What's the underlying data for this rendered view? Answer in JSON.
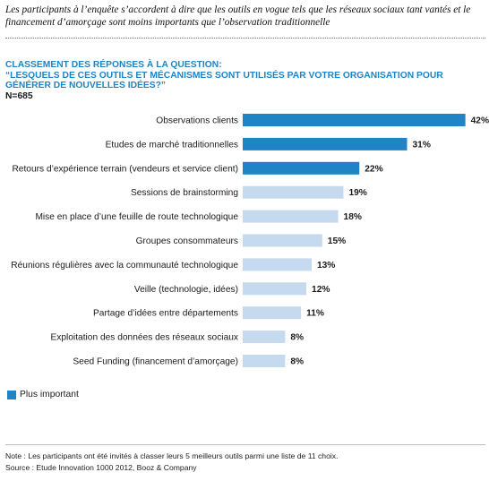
{
  "headline": "Les participants à l’enquête s’accordent à dire que les outils en vogue tels que les réseaux sociaux tant vantés et le financement d’amorçage sont moins importants que l’observation traditionnelle",
  "question": {
    "line1": "CLASSEMENT DES RÉPONSES À LA QUESTION:",
    "line2": "“LESQUELS DE CES OUTILS ET MÉCANISMES SONT UTILISÉS PAR VOTRE ORGANISATION POUR GÉNÉRER DE NOUVELLES IDÉES?”",
    "sample_size": "N=685"
  },
  "colors": {
    "highlight": "#1f84c6",
    "other": "#c5d9ef",
    "accent_text": "#1f84c6"
  },
  "chart_data": {
    "type": "bar",
    "orientation": "horizontal",
    "categories": [
      "Observations clients",
      "Etudes de marché traditionnelles",
      "Retours d’expérience terrain (vendeurs et service client)",
      "Sessions de brainstorming",
      "Mise en place d’une feuille de route technologique",
      "Groupes consommateurs",
      "Réunions régulières avec la communauté technologique",
      "Veille (technologie, idées)",
      "Partage d’idées entre départements",
      "Exploitation des données des réseaux sociaux",
      "Seed Funding (financement d’amorçage)"
    ],
    "values": [
      42,
      31,
      22,
      19,
      18,
      15,
      13,
      12,
      11,
      8,
      8
    ],
    "value_labels": [
      "42%",
      "31%",
      "22%",
      "19%",
      "18%",
      "15%",
      "13%",
      "12%",
      "11%",
      "8%",
      "8%"
    ],
    "highlighted": [
      true,
      true,
      true,
      false,
      false,
      false,
      false,
      false,
      false,
      false,
      false
    ],
    "unit": "%",
    "grid": false,
    "legend_position": "bottom-left"
  },
  "legend": {
    "label": "Plus important"
  },
  "footer": {
    "note": "Note : Les participants ont été invités à classer leurs 5 meilleurs outils parmi une liste de 11 choix.",
    "source": "Source : Etude Innovation 1000 2012, Booz & Company"
  }
}
